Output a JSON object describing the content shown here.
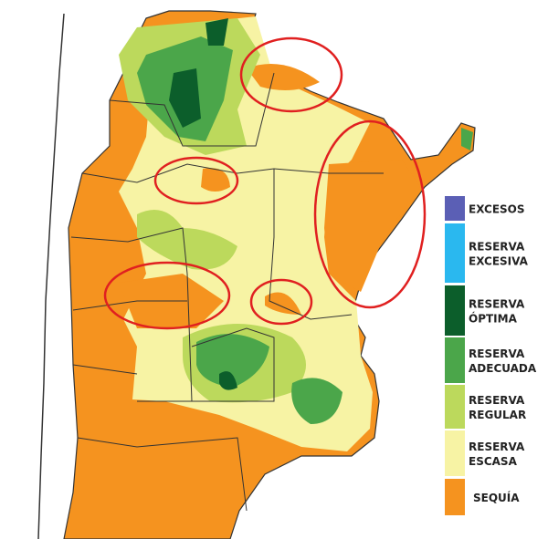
{
  "legend": {
    "items": [
      {
        "lines": [
          "EXCESOS"
        ],
        "color": "#5b5fb5"
      },
      {
        "lines": [
          "RESERVA",
          "EXCESIVA"
        ],
        "color": "#2ab8ef"
      },
      {
        "lines": [
          "RESERVA",
          "ÓPTIMA"
        ],
        "color": "#0c5e2b"
      },
      {
        "lines": [
          "RESERVA",
          "ADECUADA"
        ],
        "color": "#4ba64a"
      },
      {
        "lines": [
          "RESERVA",
          "REGULAR"
        ],
        "color": "#bcd95c"
      },
      {
        "lines": [
          "RESERVA",
          "ESCASA"
        ],
        "color": "#f7f3a4"
      },
      {
        "lines": [
          "SEQUÍA"
        ],
        "color": "#f5931f"
      }
    ]
  }
}
